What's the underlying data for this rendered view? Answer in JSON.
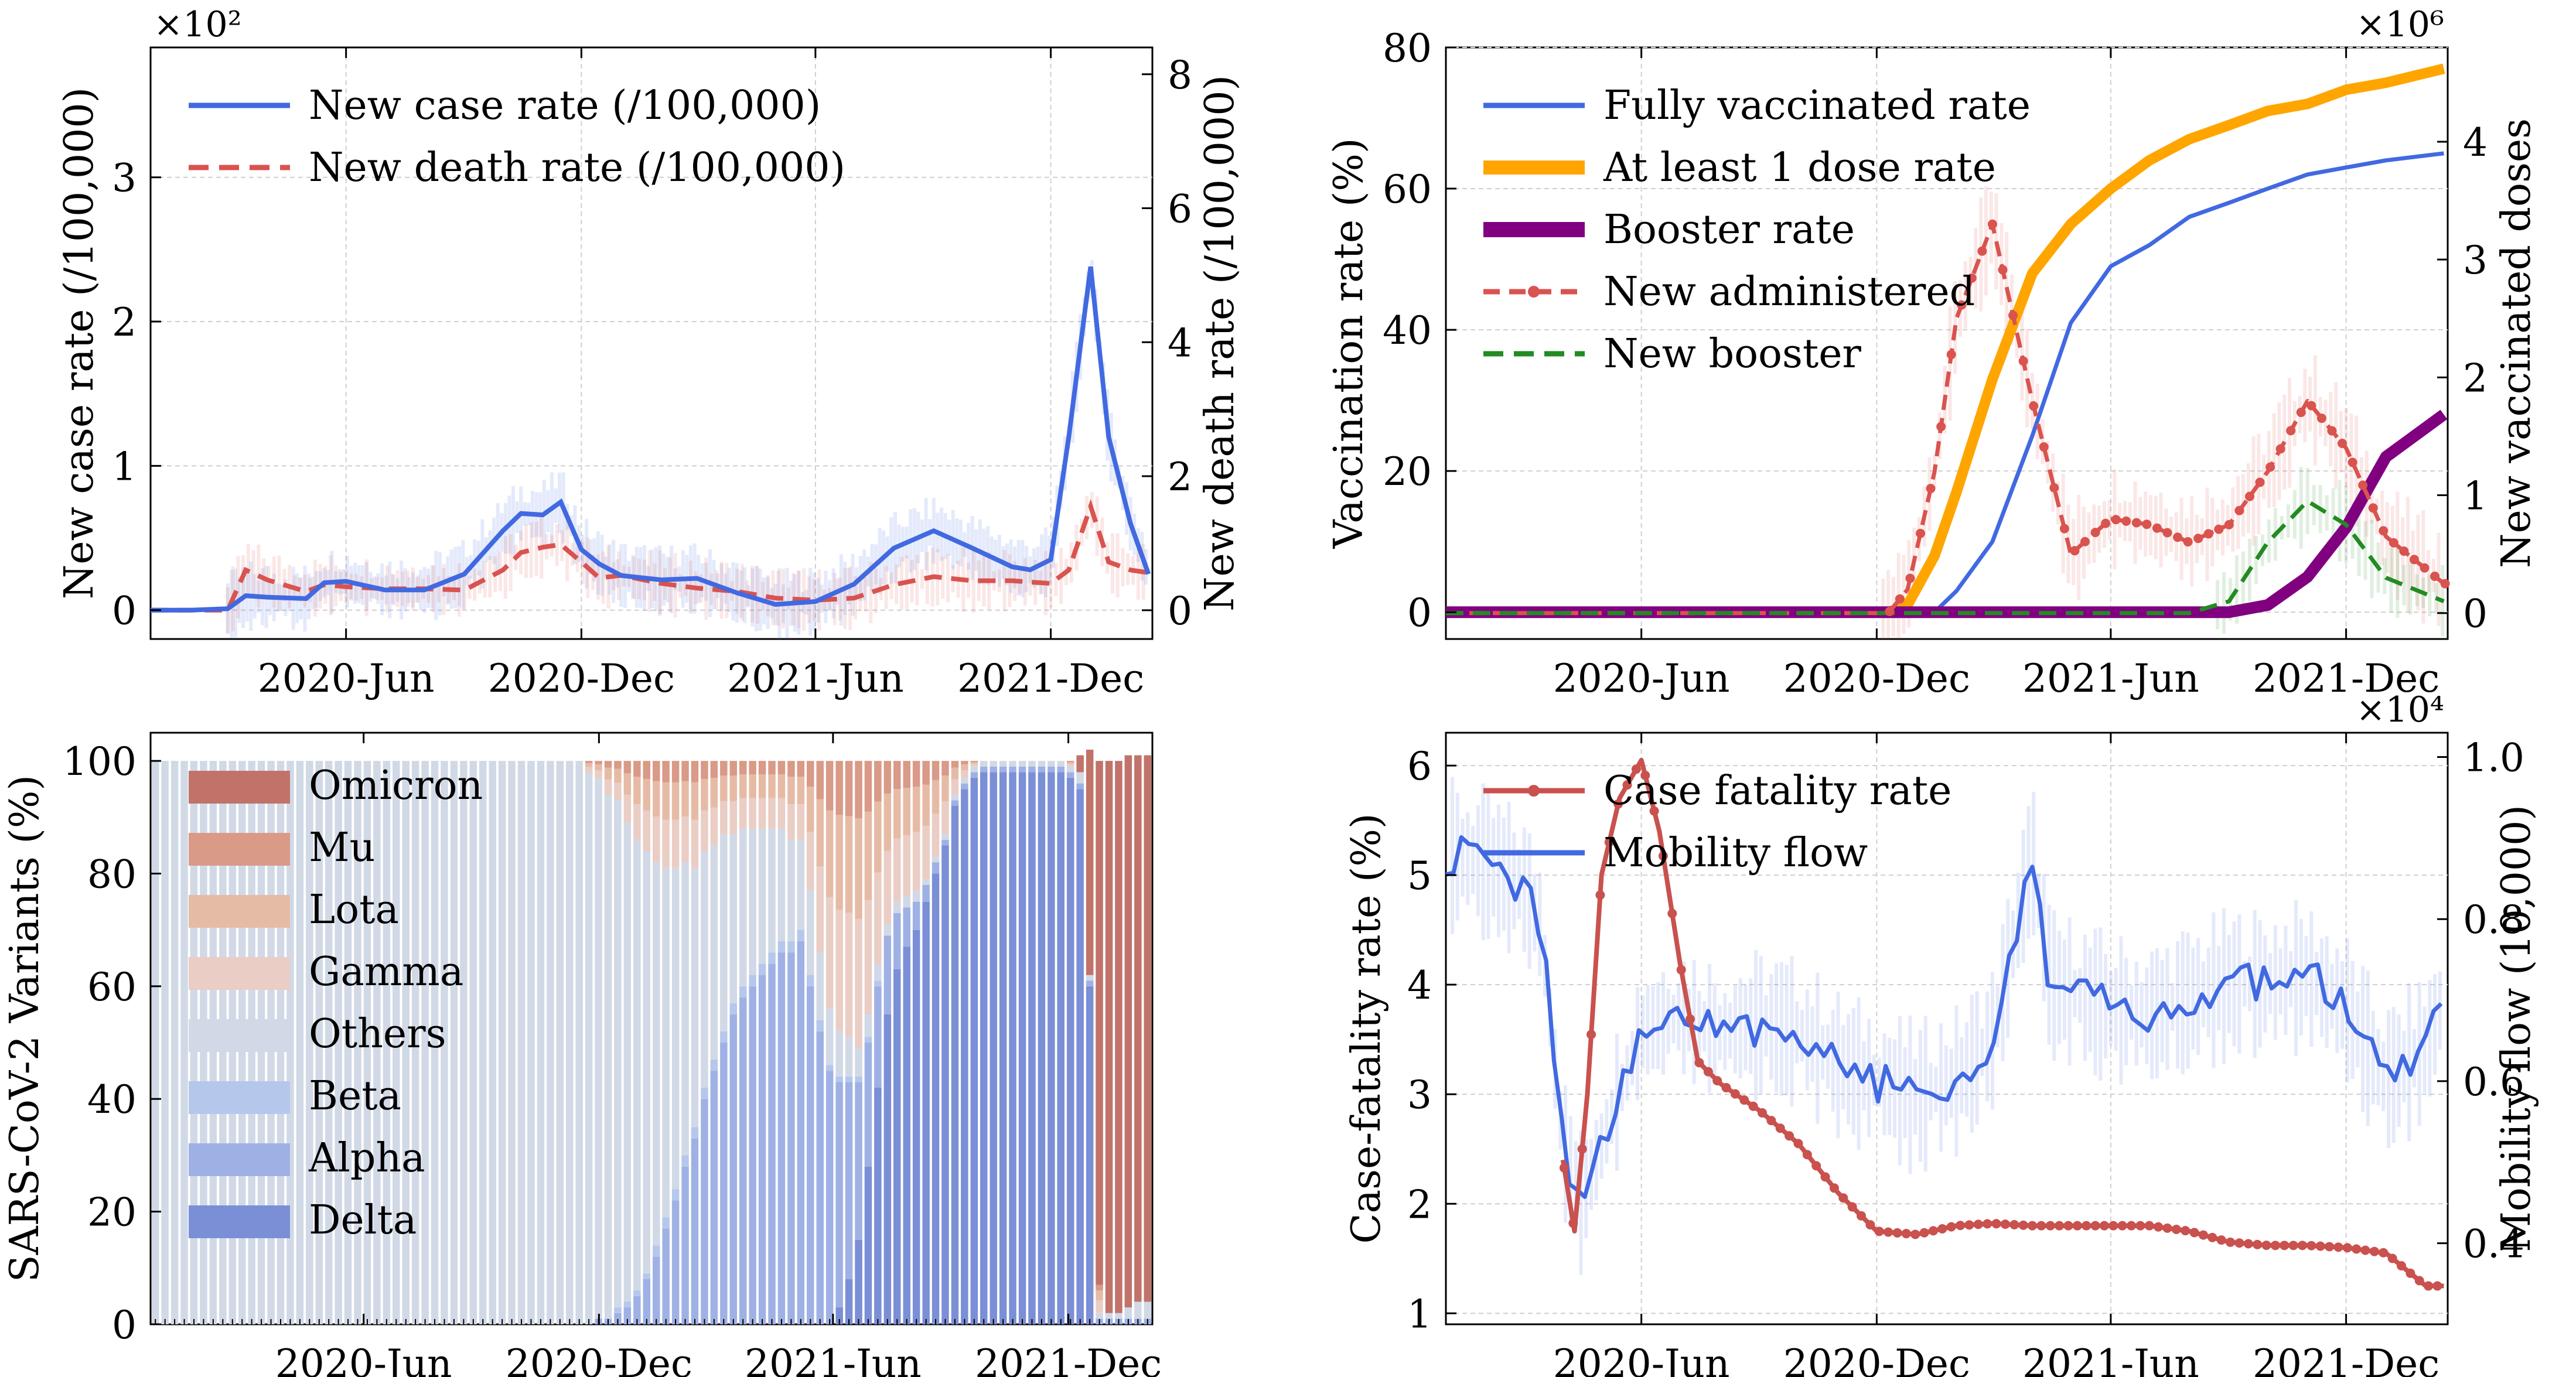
{
  "chart_data": [
    {
      "type": "line",
      "panel": "top-left",
      "ylabel": "New case rate (/100,000)",
      "y2label": "New death rate (/100,000)",
      "y_multiplier": "×10²",
      "ylim": [
        -0.2,
        3.9
      ],
      "y2lim": [
        -0.43,
        8.4
      ],
      "yticks": [
        "0",
        "1",
        "2",
        "3"
      ],
      "y2ticks": [
        "0",
        "2",
        "4",
        "6",
        "8"
      ],
      "xticks": [
        "2020-Jun",
        "2020-Dec",
        "2021-Jun",
        "2021-Dec"
      ],
      "grid": true,
      "legend": "top-left",
      "x": [
        "2020-01-01",
        "2020-02-01",
        "2020-03-01",
        "2020-03-15",
        "2020-04-01",
        "2020-05-01",
        "2020-05-15",
        "2020-06-01",
        "2020-07-01",
        "2020-08-01",
        "2020-09-01",
        "2020-10-01",
        "2020-10-15",
        "2020-11-01",
        "2020-11-15",
        "2020-12-01",
        "2020-12-15",
        "2021-01-01",
        "2021-02-01",
        "2021-03-01",
        "2021-04-01",
        "2021-05-01",
        "2021-06-01",
        "2021-07-01",
        "2021-08-01",
        "2021-09-01",
        "2021-10-01",
        "2021-11-01",
        "2021-11-15",
        "2021-12-01",
        "2021-12-15",
        "2022-01-01",
        "2022-01-15",
        "2022-02-01",
        "2022-02-15"
      ],
      "series": [
        {
          "name": "New case rate (/100,000)",
          "axis": "left",
          "color": "#4169e1",
          "style": "solid",
          "values": [
            0.0,
            0.0,
            0.01,
            0.1,
            0.09,
            0.08,
            0.19,
            0.2,
            0.14,
            0.14,
            0.25,
            0.55,
            0.67,
            0.66,
            0.75,
            0.42,
            0.32,
            0.24,
            0.21,
            0.22,
            0.12,
            0.04,
            0.06,
            0.18,
            0.43,
            0.55,
            0.43,
            0.3,
            0.28,
            0.35,
            1.2,
            2.38,
            1.2,
            0.6,
            0.25
          ]
        },
        {
          "name": "New death rate (/100,000)",
          "axis": "right",
          "color": "#d9534f",
          "style": "dashed",
          "values": [
            0.0,
            0.0,
            0.0,
            0.6,
            0.45,
            0.28,
            0.38,
            0.35,
            0.32,
            0.32,
            0.3,
            0.6,
            0.86,
            0.94,
            0.98,
            0.72,
            0.48,
            0.52,
            0.4,
            0.33,
            0.28,
            0.18,
            0.15,
            0.18,
            0.38,
            0.5,
            0.44,
            0.44,
            0.42,
            0.4,
            0.6,
            1.55,
            0.72,
            0.6,
            0.56
          ]
        }
      ]
    },
    {
      "type": "line",
      "panel": "top-right",
      "ylabel": "Vaccination rate (%)",
      "y2label": "New vaccinated doses",
      "y2_multiplier": "×10⁶",
      "ylim": [
        -3.8,
        80
      ],
      "y2lim": [
        -0.22,
        4.8
      ],
      "yticks": [
        "0",
        "20",
        "40",
        "60",
        "80"
      ],
      "y2ticks": [
        "0",
        "1",
        "2",
        "3",
        "4"
      ],
      "xticks": [
        "2020-Dec",
        "2021-Jun",
        "2021-Dec",
        "2020-Jun"
      ],
      "grid": true,
      "legend": "top-left",
      "x": [
        "2020-01-01",
        "2020-12-10",
        "2020-12-25",
        "2021-01-15",
        "2021-02-01",
        "2021-03-01",
        "2021-04-01",
        "2021-05-01",
        "2021-06-01",
        "2021-07-01",
        "2021-08-01",
        "2021-09-01",
        "2021-10-01",
        "2021-11-01",
        "2021-12-01",
        "2022-01-01",
        "2022-02-15"
      ],
      "series": [
        {
          "name": "Fully vaccinated rate",
          "axis": "left",
          "color": "#4169e1",
          "style": "solid",
          "values": [
            0,
            0,
            0,
            0,
            3,
            10,
            25,
            41,
            49,
            52,
            56,
            58,
            60,
            62,
            63,
            64,
            65
          ]
        },
        {
          "name": "At least 1 dose rate",
          "axis": "left",
          "color": "#ffa500",
          "style": "solid-thick",
          "values": [
            0,
            0,
            1,
            8,
            17,
            33,
            48,
            55,
            60,
            64,
            67,
            69,
            71,
            72,
            74,
            75,
            77
          ]
        },
        {
          "name": "Booster rate",
          "axis": "left",
          "color": "#800080",
          "style": "solid-thick",
          "values": [
            0,
            0,
            0,
            0,
            0,
            0,
            0,
            0,
            0,
            0,
            0,
            0,
            1,
            5,
            12,
            22,
            28
          ]
        },
        {
          "name": "New administered",
          "axis": "right",
          "color": "#d9534f",
          "style": "dashed-dot",
          "values": [
            0,
            0,
            0.2,
            1.2,
            2.5,
            3.3,
            1.8,
            0.5,
            0.8,
            0.75,
            0.6,
            0.75,
            1.2,
            1.8,
            1.4,
            0.65,
            0.25
          ]
        },
        {
          "name": "New booster",
          "axis": "right",
          "color": "#228b22",
          "style": "dashed",
          "values": [
            0,
            0,
            0,
            0,
            0,
            0,
            0,
            0,
            0,
            0,
            0,
            0.1,
            0.6,
            0.95,
            0.75,
            0.3,
            0.1
          ]
        }
      ]
    },
    {
      "type": "bar",
      "panel": "bottom-left",
      "stacked": true,
      "ylabel": "SARS-CoV-2 Variants (%)",
      "ylim": [
        0,
        105
      ],
      "yticks": [
        "0",
        "20",
        "40",
        "60",
        "80",
        "100"
      ],
      "xticks": [
        "2020-Jun",
        "2020-Dec",
        "2021-Jun",
        "2021-Dec"
      ],
      "legend": "top-left",
      "series": [
        {
          "name": "Omicron",
          "color": "#c1736a"
        },
        {
          "name": "Mu",
          "color": "#d99a88"
        },
        {
          "name": "Lota",
          "color": "#e6bba6"
        },
        {
          "name": "Gamma",
          "color": "#eacdc4"
        },
        {
          "name": "Others",
          "color": "#d1d9e6"
        },
        {
          "name": "Beta",
          "color": "#b6c7ec"
        },
        {
          "name": "Alpha",
          "color": "#9fb1e4"
        },
        {
          "name": "Delta",
          "color": "#7b8fd6"
        }
      ],
      "weeks": 104,
      "delta": [
        0,
        0,
        0,
        0,
        0,
        0,
        0,
        0,
        0,
        0,
        0,
        0,
        0,
        0,
        0,
        0,
        0,
        0,
        0,
        0,
        0,
        0,
        0,
        0,
        0,
        0,
        0,
        0,
        0,
        0,
        0,
        0,
        0,
        0,
        0,
        0,
        0,
        0,
        0,
        0,
        0,
        0,
        0,
        0,
        0,
        0,
        0,
        0,
        0,
        0,
        0,
        0,
        0,
        0,
        0,
        0,
        0,
        0,
        0,
        0,
        0,
        0,
        0,
        0,
        0,
        0,
        0,
        0,
        0,
        0,
        0,
        3,
        8,
        15,
        28,
        42,
        55,
        63,
        67,
        70,
        75,
        80,
        85,
        92,
        95,
        97,
        98,
        98,
        98,
        98,
        98,
        98,
        98,
        98,
        98,
        97,
        95,
        60,
        0,
        0,
        0,
        0,
        0,
        0
      ],
      "alpha": [
        0,
        0,
        0,
        0,
        0,
        0,
        0,
        0,
        0,
        0,
        0,
        0,
        0,
        0,
        0,
        0,
        0,
        0,
        0,
        0,
        0,
        0,
        0,
        0,
        0,
        0,
        0,
        0,
        0,
        0,
        0,
        0,
        0,
        0,
        0,
        0,
        0,
        0,
        0,
        0,
        0,
        0,
        0,
        0,
        0,
        0,
        1,
        1,
        2,
        3,
        5,
        8,
        12,
        17,
        22,
        28,
        33,
        40,
        45,
        50,
        55,
        58,
        60,
        62,
        64,
        66,
        66,
        68,
        60,
        52,
        45,
        40,
        35,
        28,
        22,
        18,
        14,
        10,
        7,
        5,
        3,
        2,
        1,
        1,
        1,
        1,
        1,
        1,
        1,
        1,
        1,
        1,
        1,
        1,
        1,
        1,
        1,
        1,
        1,
        1,
        1,
        1,
        1,
        1
      ],
      "beta": [
        0,
        0,
        0,
        0,
        0,
        0,
        0,
        0,
        0,
        0,
        0,
        0,
        0,
        0,
        0,
        0,
        0,
        0,
        0,
        0,
        0,
        0,
        0,
        0,
        0,
        0,
        0,
        0,
        0,
        0,
        0,
        0,
        0,
        0,
        0,
        0,
        0,
        0,
        0,
        0,
        0,
        0,
        0,
        0,
        0,
        0,
        0,
        0,
        1,
        1,
        1,
        1,
        2,
        2,
        2,
        2,
        2,
        2,
        2,
        2,
        2,
        2,
        2,
        2,
        2,
        2,
        2,
        2,
        2,
        2,
        1,
        1,
        1,
        1,
        1,
        1,
        0,
        0,
        0,
        0,
        0,
        0,
        0,
        0,
        0,
        0,
        0,
        0,
        0,
        0,
        0,
        0,
        0,
        0,
        0,
        0,
        0,
        0,
        0,
        0,
        0,
        0,
        0,
        0
      ],
      "others": [
        100,
        100,
        100,
        100,
        100,
        100,
        100,
        100,
        100,
        100,
        100,
        100,
        100,
        100,
        100,
        100,
        100,
        100,
        100,
        100,
        100,
        100,
        100,
        100,
        100,
        100,
        100,
        100,
        100,
        100,
        100,
        100,
        100,
        100,
        100,
        100,
        100,
        100,
        100,
        100,
        100,
        100,
        100,
        100,
        100,
        98,
        96,
        93,
        90,
        85,
        80,
        75,
        68,
        62,
        57,
        52,
        46,
        42,
        38,
        35,
        30,
        28,
        26,
        24,
        22,
        20,
        18,
        16,
        15,
        12,
        10,
        8,
        7,
        5,
        4,
        3,
        2,
        2,
        2,
        2,
        1,
        1,
        1,
        1,
        1,
        1,
        1,
        1,
        1,
        1,
        1,
        1,
        1,
        1,
        1,
        1,
        2,
        1,
        1,
        1,
        1,
        2,
        3,
        3
      ],
      "omicron": [
        0,
        0,
        0,
        0,
        0,
        0,
        0,
        0,
        0,
        0,
        0,
        0,
        0,
        0,
        0,
        0,
        0,
        0,
        0,
        0,
        0,
        0,
        0,
        0,
        0,
        0,
        0,
        0,
        0,
        0,
        0,
        0,
        0,
        0,
        0,
        0,
        0,
        0,
        0,
        0,
        0,
        0,
        0,
        0,
        0,
        0,
        0,
        0,
        0,
        0,
        0,
        0,
        0,
        0,
        0,
        0,
        0,
        0,
        0,
        0,
        0,
        0,
        0,
        0,
        0,
        0,
        0,
        0,
        0,
        0,
        0,
        0,
        0,
        0,
        0,
        0,
        0,
        0,
        0,
        0,
        0,
        0,
        0,
        0,
        0,
        0,
        0,
        0,
        0,
        0,
        0,
        0,
        0,
        0,
        0,
        0,
        3,
        40,
        93,
        98,
        98,
        98,
        97,
        97
      ]
    },
    {
      "type": "line",
      "panel": "bottom-right",
      "ylabel": "Case-fatality rate (%)",
      "y2label": "Mobility flow (10,000)",
      "y2_multiplier": "×10⁴",
      "ylim": [
        0.9,
        6.3
      ],
      "y2lim": [
        0.3,
        1.03
      ],
      "yticks": [
        "1",
        "2",
        "3",
        "4",
        "5",
        "6"
      ],
      "y2ticks": [
        "0.4",
        "0.6",
        "0.8",
        "1.0"
      ],
      "xticks": [
        "2020-Jun",
        "2020-Dec",
        "2021-Jun",
        "2021-Dec"
      ],
      "grid": true,
      "legend": "top-left",
      "series": [
        {
          "name": "Case fatality rate",
          "axis": "left",
          "color": "#c9514e",
          "style": "solid-dot",
          "x": [
            "2020-04-01",
            "2020-04-10",
            "2020-04-20",
            "2020-05-01",
            "2020-05-15",
            "2020-06-01",
            "2020-06-15",
            "2020-07-01",
            "2020-07-15",
            "2020-08-01",
            "2020-09-01",
            "2020-10-01",
            "2020-11-01",
            "2020-12-01",
            "2021-01-01",
            "2021-02-01",
            "2021-03-01",
            "2021-04-01",
            "2021-05-01",
            "2021-06-01",
            "2021-07-01",
            "2021-08-01",
            "2021-09-01",
            "2021-10-01",
            "2021-11-01",
            "2021-12-01",
            "2022-01-01",
            "2022-02-01",
            "2022-02-15"
          ],
          "values": [
            2.4,
            1.75,
            3.0,
            5.0,
            5.7,
            6.05,
            5.4,
            4.2,
            3.3,
            3.1,
            2.85,
            2.55,
            2.1,
            1.75,
            1.72,
            1.8,
            1.82,
            1.8,
            1.8,
            1.8,
            1.8,
            1.75,
            1.65,
            1.62,
            1.62,
            1.6,
            1.55,
            1.25,
            1.25
          ]
        },
        {
          "name": "Mobility flow",
          "axis": "right",
          "color": "#4169e1",
          "style": "solid",
          "x": [
            "2020-01-01",
            "2020-02-01",
            "2020-03-01",
            "2020-03-15",
            "2020-04-01",
            "2020-04-15",
            "2020-05-01",
            "2020-06-01",
            "2020-07-01",
            "2020-08-01",
            "2020-09-01",
            "2020-10-01",
            "2020-11-01",
            "2020-12-01",
            "2021-01-01",
            "2021-02-01",
            "2021-03-01",
            "2021-04-01",
            "2021-04-15",
            "2021-05-01",
            "2021-06-01",
            "2021-07-01",
            "2021-08-01",
            "2021-09-01",
            "2021-10-01",
            "2021-11-01",
            "2021-12-01",
            "2022-01-01",
            "2022-02-01",
            "2022-02-15"
          ],
          "values": [
            0.88,
            0.87,
            0.84,
            0.79,
            0.52,
            0.45,
            0.52,
            0.66,
            0.68,
            0.66,
            0.67,
            0.66,
            0.62,
            0.6,
            0.58,
            0.6,
            0.65,
            0.88,
            0.72,
            0.71,
            0.69,
            0.68,
            0.7,
            0.72,
            0.72,
            0.73,
            0.69,
            0.6,
            0.64,
            0.7
          ]
        }
      ]
    }
  ]
}
